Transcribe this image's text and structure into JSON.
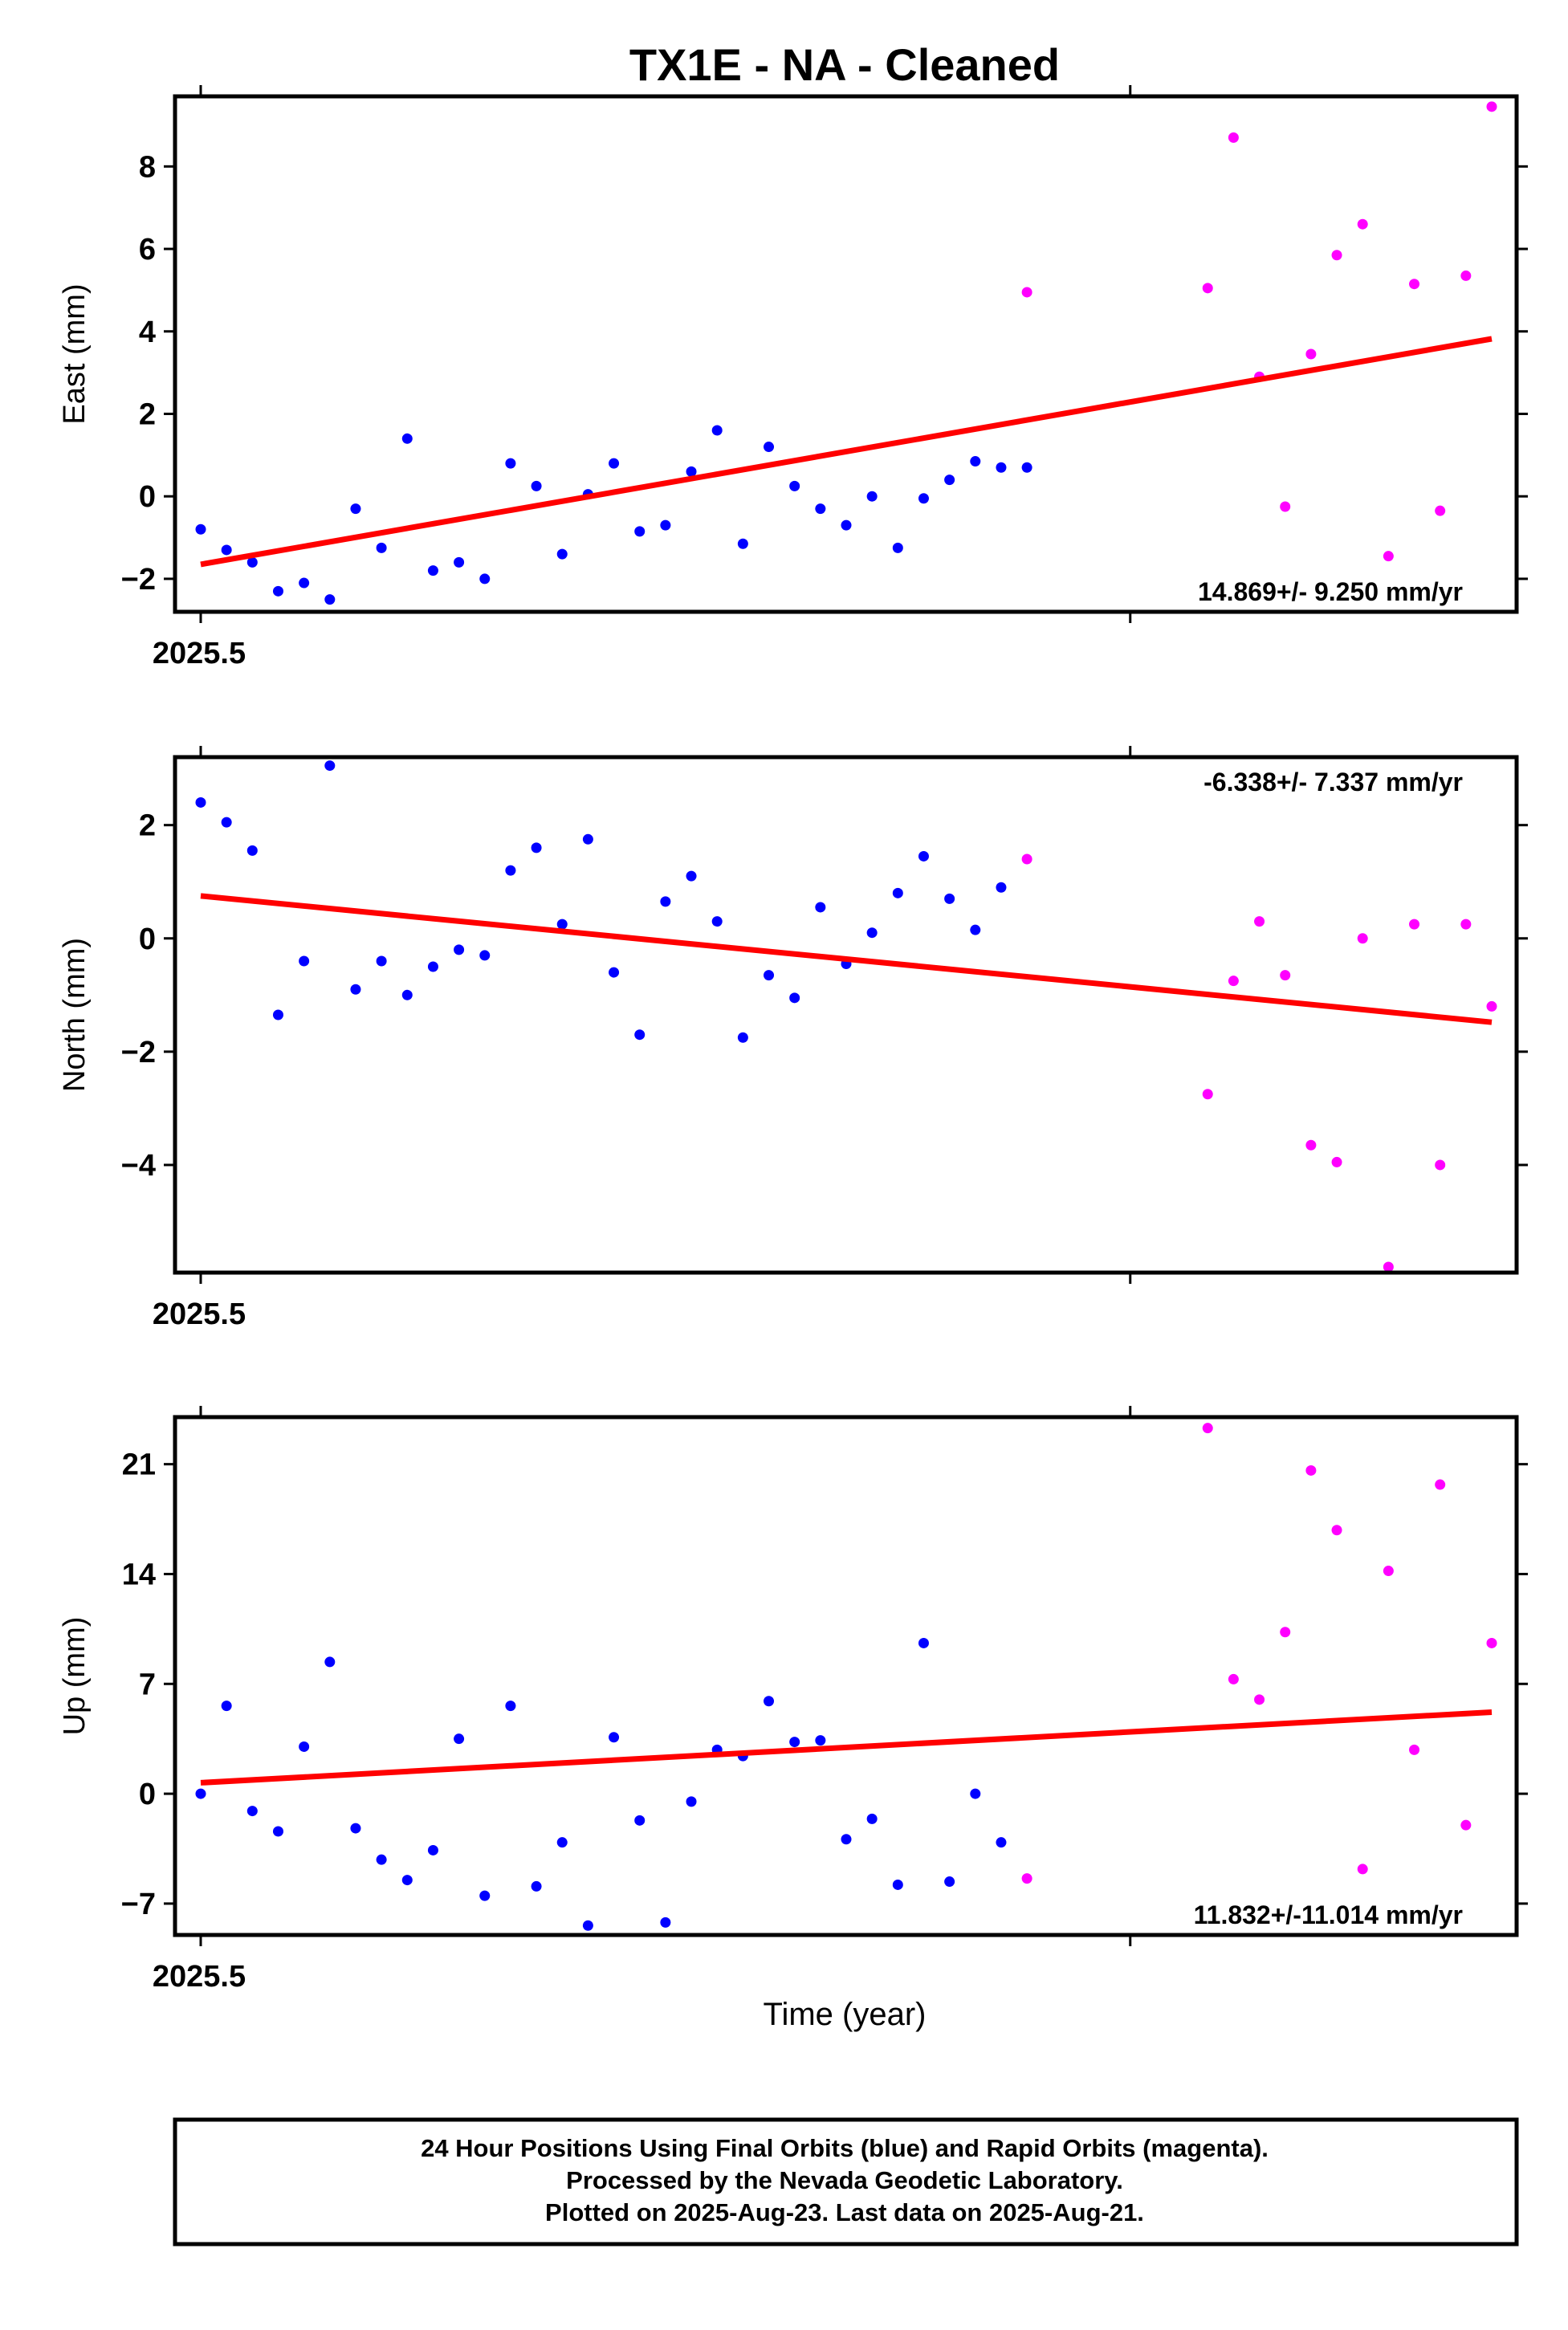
{
  "title": "TX1E  - NA - Cleaned",
  "xlabel": "Time (year)",
  "x_tick_label": "2025.5",
  "footer": {
    "line1": "24 Hour Positions Using Final Orbits (blue) and Rapid Orbits (magenta).",
    "line2": "Processed by the Nevada Geodetic Laboratory.",
    "line3": "Plotted on 2025-Aug-23. Last data on 2025-Aug-21."
  },
  "colors": {
    "final": "#0000ff",
    "rapid": "#ff00ff",
    "trend": "#ff0000"
  },
  "chart_data": [
    {
      "type": "scatter",
      "ylabel": "East (mm)",
      "rate_text": "14.869+/- 9.250 mm/yr",
      "ylim": [
        -2.8,
        9.7
      ],
      "yticks": [
        -2,
        0,
        2,
        4,
        6,
        8
      ],
      "yticklabels": [
        "−2",
        "0",
        "2",
        "4",
        "6",
        "8"
      ],
      "trend": [
        [
          0,
          -1.65
        ],
        [
          50,
          3.82
        ]
      ],
      "series": [
        {
          "name": "Final Orbits",
          "color": "#0000ff",
          "x": [
            0,
            1,
            2,
            3,
            4,
            5,
            6,
            7,
            8,
            9,
            10,
            11,
            12,
            13,
            14,
            15,
            16,
            17,
            18,
            19,
            20,
            21,
            22,
            23,
            24,
            25,
            26,
            27,
            28,
            29,
            30,
            31,
            32
          ],
          "y": [
            -0.8,
            -1.3,
            -1.6,
            -2.3,
            -2.1,
            -2.5,
            -0.3,
            -1.25,
            1.4,
            -1.8,
            -1.6,
            -2.0,
            0.8,
            0.25,
            -1.4,
            0.05,
            0.8,
            -0.85,
            -0.7,
            0.6,
            1.6,
            -1.15,
            1.2,
            0.25,
            -0.3,
            -0.7,
            0.0,
            -1.25,
            -0.05,
            0.4,
            0.85,
            0.7,
            0.7
          ]
        },
        {
          "name": "Rapid Orbits",
          "color": "#ff00ff",
          "x": [
            32,
            39,
            40,
            41,
            42,
            43,
            44,
            45,
            46,
            47,
            48,
            49,
            50
          ],
          "y": [
            4.95,
            5.05,
            8.7,
            2.9,
            -0.25,
            3.45,
            5.85,
            6.6,
            -1.45,
            5.15,
            -0.35,
            5.35,
            9.45
          ]
        }
      ]
    },
    {
      "type": "scatter",
      "ylabel": "North (mm)",
      "rate_text": "-6.338+/- 7.337 mm/yr",
      "ylim": [
        -5.9,
        3.2
      ],
      "yticks": [
        -4,
        -2,
        0,
        2
      ],
      "yticklabels": [
        "−4",
        "−2",
        "0",
        "2"
      ],
      "trend": [
        [
          0,
          0.75
        ],
        [
          50,
          -1.48
        ]
      ],
      "series": [
        {
          "name": "Final Orbits",
          "color": "#0000ff",
          "x": [
            0,
            1,
            2,
            3,
            4,
            5,
            6,
            7,
            8,
            9,
            10,
            11,
            12,
            13,
            14,
            15,
            16,
            17,
            18,
            19,
            20,
            21,
            22,
            23,
            24,
            25,
            26,
            27,
            28,
            29,
            30,
            31
          ],
          "y": [
            2.4,
            2.05,
            1.55,
            -1.35,
            -0.4,
            3.05,
            -0.9,
            -0.4,
            -1.0,
            -0.5,
            -0.2,
            -0.3,
            1.2,
            1.6,
            0.25,
            1.75,
            -0.6,
            -1.7,
            0.65,
            1.1,
            0.3,
            -1.75,
            -0.65,
            -1.05,
            0.55,
            -0.45,
            0.1,
            0.8,
            1.45,
            0.7,
            0.15,
            0.9
          ]
        },
        {
          "name": "Rapid Orbits",
          "color": "#ff00ff",
          "x": [
            32,
            39,
            40,
            41,
            42,
            43,
            44,
            45,
            46,
            47,
            48,
            49,
            50
          ],
          "y": [
            1.4,
            -2.75,
            -0.75,
            0.3,
            -0.65,
            -3.65,
            -3.95,
            0.0,
            -5.8,
            0.25,
            -4.0,
            0.25,
            -1.2
          ]
        }
      ]
    },
    {
      "type": "scatter",
      "ylabel": "Up (mm)",
      "rate_text": "11.832+/-11.014 mm/yr",
      "ylim": [
        -9,
        24
      ],
      "yticks": [
        -7,
        0,
        7,
        14,
        21
      ],
      "yticklabels": [
        "−7",
        "0",
        "7",
        "14",
        "21"
      ],
      "trend": [
        [
          0,
          0.7
        ],
        [
          50,
          5.2
        ]
      ],
      "series": [
        {
          "name": "Final Orbits",
          "color": "#0000ff",
          "x": [
            0,
            1,
            2,
            3,
            4,
            5,
            6,
            7,
            8,
            9,
            10,
            11,
            12,
            13,
            14,
            15,
            16,
            17,
            18,
            19,
            20,
            21,
            22,
            23,
            24,
            25,
            26,
            27,
            28,
            29,
            30,
            31
          ],
          "y": [
            0.0,
            5.6,
            -1.1,
            -2.4,
            3.0,
            8.4,
            -2.2,
            -4.2,
            -5.5,
            -3.6,
            3.5,
            -6.5,
            5.6,
            -5.9,
            -3.1,
            -8.4,
            3.6,
            -1.7,
            -8.2,
            -0.5,
            2.8,
            2.4,
            5.9,
            3.3,
            3.4,
            -2.9,
            -1.6,
            -5.8,
            9.6,
            -5.6,
            0.0,
            -3.1
          ]
        },
        {
          "name": "Rapid Orbits",
          "color": "#ff00ff",
          "x": [
            32,
            39,
            40,
            41,
            42,
            43,
            44,
            45,
            46,
            47,
            48,
            49,
            50
          ],
          "y": [
            -5.4,
            23.3,
            7.3,
            6.0,
            10.3,
            20.6,
            16.8,
            -4.8,
            14.2,
            2.8,
            19.7,
            -2.0,
            9.6
          ]
        }
      ]
    }
  ]
}
